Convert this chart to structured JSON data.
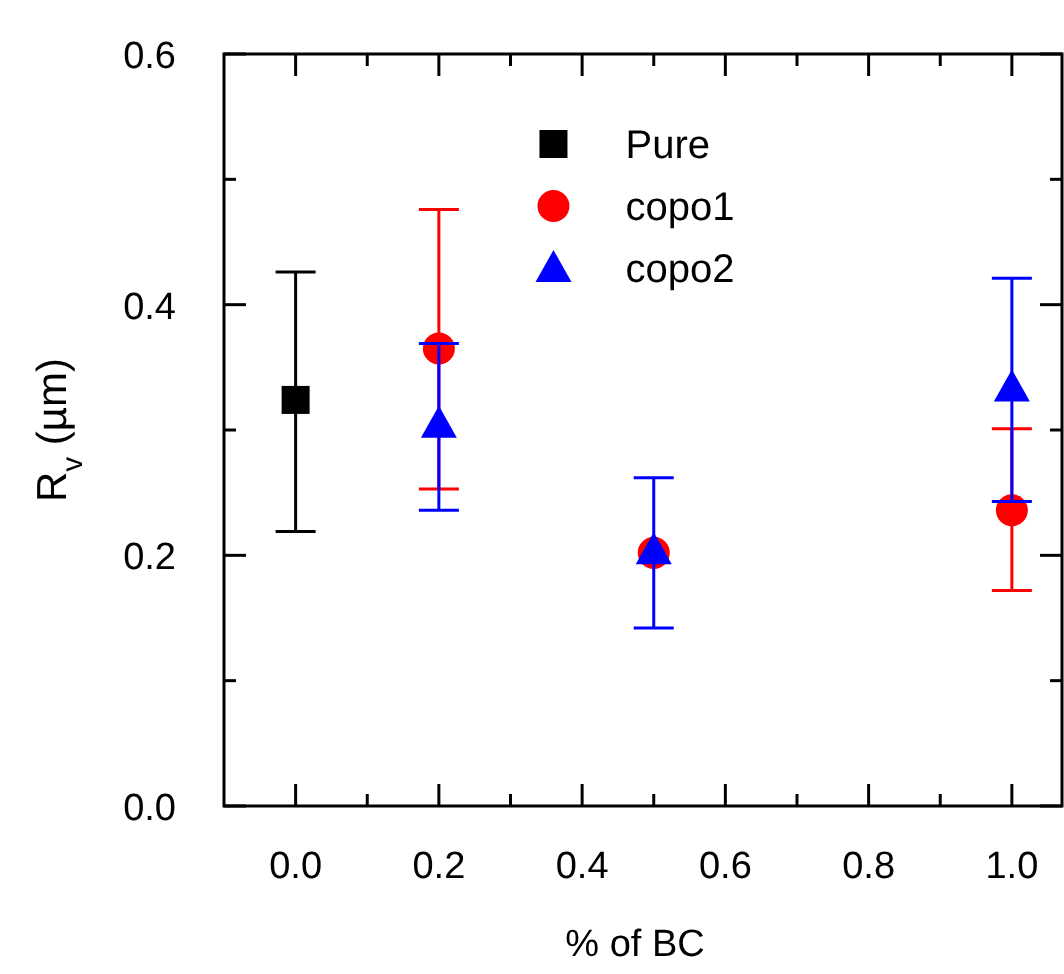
{
  "chart_data": {
    "type": "scatter",
    "xlabel": "% of BC",
    "ylabel": "R$_{v}$ (µm)",
    "xlim": [
      -0.1,
      1.07
    ],
    "ylim": [
      0,
      0.6
    ],
    "xticks": [
      {
        "value": 0,
        "label": "0.0"
      },
      {
        "value": 0.1,
        "label": null
      },
      0.2,
      {
        "value": 0.3,
        "label": null
      },
      0.4,
      {
        "value": 0.5,
        "label": null
      },
      0.6,
      {
        "value": 0.7,
        "label": null
      },
      0.8,
      {
        "value": 0.9,
        "label": null
      },
      {
        "value": 1,
        "label": "1.0"
      }
    ],
    "yticks": [
      {
        "value": 0,
        "label": "0.0"
      },
      {
        "value": 0.1,
        "label": null
      },
      0.2,
      {
        "value": 0.3,
        "label": null
      },
      0.4,
      {
        "value": 0.5,
        "label": null
      },
      0.6
    ],
    "grid": false,
    "legend": "top right",
    "series": [
      {
        "name": "Pure",
        "color": "#000000",
        "marker": "square",
        "x": [
          0
        ],
        "values": [
          0.324
        ],
        "errors": [
          [
            0.219,
            0.426
          ]
        ]
      },
      {
        "name": "copo1",
        "color": "#ff0000",
        "marker": "circle",
        "x": [
          0.2,
          0.5,
          1
        ],
        "values": [
          0.365,
          0.202,
          0.236
        ],
        "errors": [
          [
            0.253,
            0.476
          ],
          null,
          [
            0.172,
            0.301
          ]
        ]
      },
      {
        "name": "copo2",
        "color": "#0000ff",
        "marker": "triangle",
        "x": [
          0.2,
          0.5,
          1
        ],
        "values": [
          0.305,
          0.204,
          0.334
        ],
        "errors": [
          [
            0.236,
            0.369
          ],
          [
            0.142,
            0.262
          ],
          [
            0.243,
            0.421
          ]
        ]
      }
    ]
  }
}
